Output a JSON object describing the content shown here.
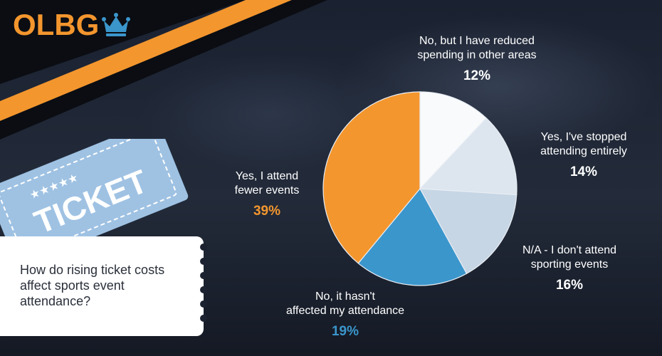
{
  "brand": {
    "logo_text": "OLBG",
    "logo_color": "#f3962e",
    "crown_icon": "crown-icon"
  },
  "ticket_decoration": {
    "text": "TICKET"
  },
  "question": "How do rising ticket costs affect sports event attendance?",
  "colors": {
    "orange": "#f3962e",
    "blue": "#3b96cc",
    "light_blue": "#c7d6e5",
    "pale": "#dde5ee",
    "white": "#f8fafc"
  },
  "chart_data": {
    "type": "pie",
    "title": "How do rising ticket costs affect sports event attendance?",
    "slices": [
      {
        "label": "No, but I have reduced spending in other areas",
        "value": 12,
        "display": "12%",
        "color": "#f8fafc"
      },
      {
        "label": "Yes, I've stopped attending entirely",
        "value": 14,
        "display": "14%",
        "color": "#dde5ee"
      },
      {
        "label": "N/A - I don't attend sporting events",
        "value": 16,
        "display": "16%",
        "color": "#c7d6e5"
      },
      {
        "label": "No, it hasn't affected my attendance",
        "value": 19,
        "display": "19%",
        "color": "#3b96cc"
      },
      {
        "label": "Yes, I attend fewer events",
        "value": 39,
        "display": "39%",
        "color": "#f3962e"
      }
    ],
    "labels": [
      {
        "line1": "No, but I have reduced",
        "line2": "spending in other areas",
        "pct": "12%"
      },
      {
        "line1": "Yes, I've stopped",
        "line2": "attending entirely",
        "pct": "14%"
      },
      {
        "line1": "N/A - I don't attend",
        "line2": "sporting events",
        "pct": "16%"
      },
      {
        "line1": "No, it hasn't",
        "line2": "affected my attendance",
        "pct": "19%"
      },
      {
        "line1": "Yes, I attend",
        "line2": "fewer events",
        "pct": "39%"
      }
    ],
    "legend": "none"
  }
}
